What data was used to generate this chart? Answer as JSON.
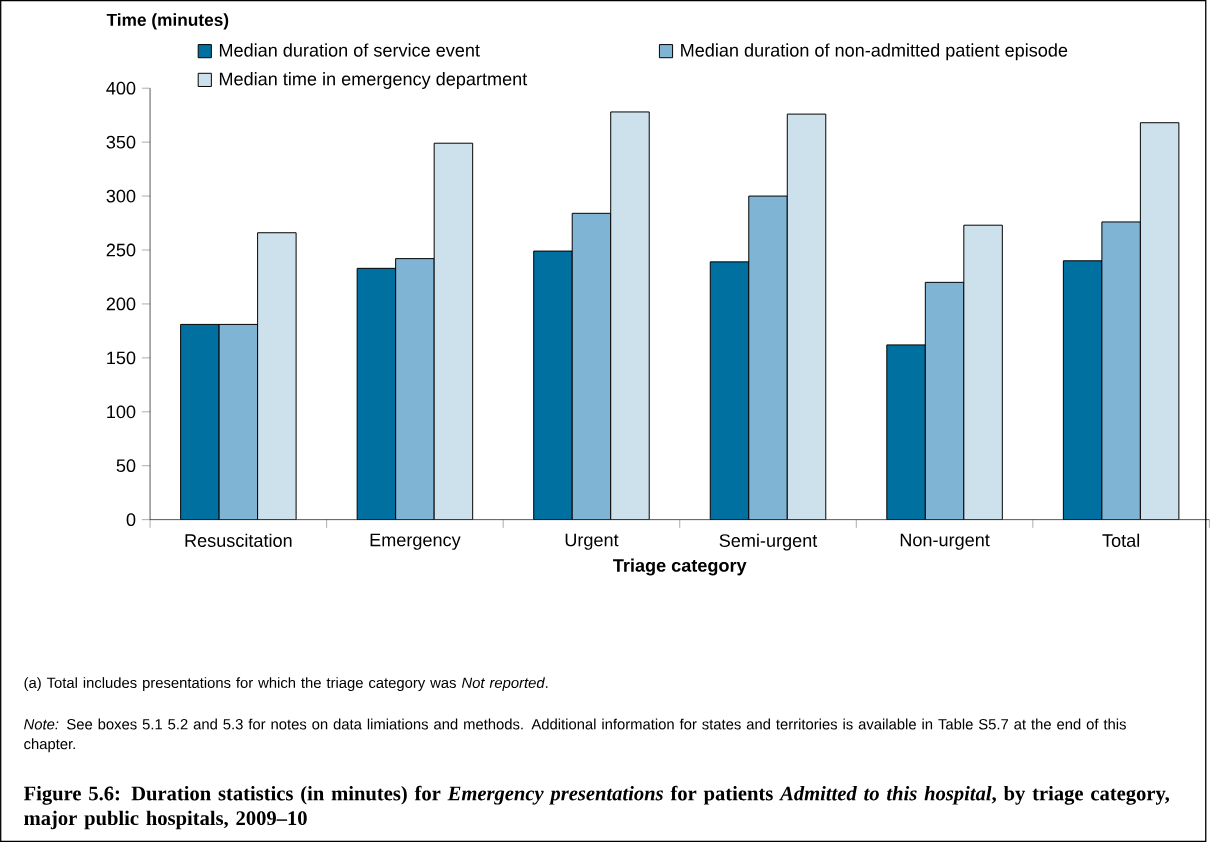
{
  "chart_data": {
    "type": "bar",
    "title": "Figure 5.6: Duration statistics (in minutes) for *Emergency presentations* for patients *Admitted to this hospital*, by triage category, major public hospitals, 2009–10",
    "ylabel": "Time (minutes)",
    "xlabel": "Triage category",
    "categories": [
      "Resuscitation",
      "Emergency",
      "Urgent",
      "Semi-urgent",
      "Non-urgent",
      "Total"
    ],
    "series": [
      {
        "name": "Median duration of service event",
        "color": "#0070a0",
        "values": [
          181,
          233,
          249,
          239,
          162,
          240
        ]
      },
      {
        "name": "Median duration of non-admitted patient episode",
        "color": "#80b4d4",
        "values": [
          181,
          242,
          284,
          300,
          220,
          276
        ]
      },
      {
        "name": "Median time in emergency department",
        "color": "#cde1ec",
        "values": [
          266,
          349,
          378,
          376,
          273,
          368
        ]
      }
    ],
    "ylim": [
      0,
      400
    ],
    "yticks": [
      0,
      50,
      100,
      150,
      200,
      250,
      300,
      350,
      400
    ],
    "legend": "top",
    "annotations": [
      "(a)\tTotal includes presentations for which the triage category was *Not reported*.",
      "*Note:* See boxes 5.1 5.2 and 5.3 for notes on data limiations and methods. Additional information for states and territories is available in Table S5.7 at the end of this chapter."
    ]
  }
}
